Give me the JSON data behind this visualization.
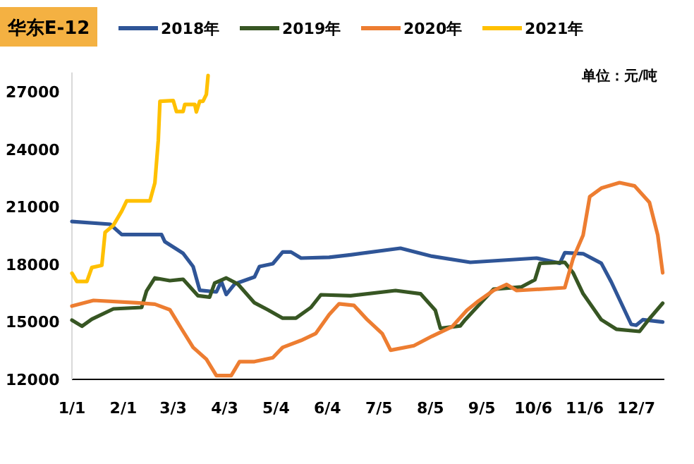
{
  "chart_data": {
    "type": "line",
    "title": "华东E-12",
    "annotations": [
      "单位：元/吨"
    ],
    "xlim": [
      "--01-01",
      "--12-24"
    ],
    "xticks": [
      {
        "value": "--01-01",
        "label": "1/1"
      },
      {
        "value": "--02-01",
        "label": "2/1"
      },
      {
        "value": "--03-03",
        "label": "3/3"
      },
      {
        "value": "--04-03",
        "label": "4/3"
      },
      {
        "value": "--05-04",
        "label": "5/4"
      },
      {
        "value": "--06-04",
        "label": "6/4"
      },
      {
        "value": "--07-05",
        "label": "7/5"
      },
      {
        "value": "--08-05",
        "label": "8/5"
      },
      {
        "value": "--09-05",
        "label": "9/5"
      },
      {
        "value": "--10-06",
        "label": "10/6"
      },
      {
        "value": "--11-06",
        "label": "11/6"
      },
      {
        "value": "--12-07",
        "label": "12/7"
      }
    ],
    "ylim": [
      12000,
      28000
    ],
    "yticks": [
      12000,
      15000,
      18000,
      21000,
      24000,
      27000
    ],
    "grid": false,
    "legend": "top",
    "marker": "none",
    "line_style": "solid",
    "series": [
      {
        "name": "2018年",
        "color": "#2f5597",
        "x": [
          "--01-01",
          "--01-24",
          "--01-31",
          "--02-24",
          "--02-26",
          "--03-09",
          "--03-15",
          "--03-19",
          "--03-29",
          "--04-01",
          "--04-04",
          "--04-09",
          "--04-21",
          "--04-24",
          "--05-02",
          "--05-08",
          "--05-13",
          "--05-19",
          "--06-05",
          "--06-18",
          "--07-18",
          "--08-06",
          "--08-29",
          "--10-08",
          "--10-22",
          "--10-25",
          "--11-05",
          "--11-16",
          "--11-22",
          "--12-04",
          "--12-07",
          "--12-11",
          "--12-23"
        ],
        "values": [
          20230,
          20090,
          19550,
          19550,
          19180,
          18570,
          17880,
          16650,
          16560,
          17100,
          16430,
          16970,
          17340,
          17880,
          18030,
          18640,
          18640,
          18320,
          18370,
          18490,
          18840,
          18420,
          18100,
          18320,
          18050,
          18600,
          18550,
          18050,
          17070,
          14870,
          14820,
          15110,
          14990
        ]
      },
      {
        "name": "2019年",
        "color": "#375623",
        "x": [
          "--01-01",
          "--01-07",
          "--01-13",
          "--01-26",
          "--02-12",
          "--02-15",
          "--02-20",
          "--03-01",
          "--03-09",
          "--03-18",
          "--03-25",
          "--03-28",
          "--04-04",
          "--04-11",
          "--04-21",
          "--04-29",
          "--05-08",
          "--05-16",
          "--05-25",
          "--05-31",
          "--06-18",
          "--07-15",
          "--07-30",
          "--08-08",
          "--08-11",
          "--08-23",
          "--08-26",
          "--09-12",
          "--09-29",
          "--10-07",
          "--10-10",
          "--10-25",
          "--10-30",
          "--11-05",
          "--11-16",
          "--11-25",
          "--12-09",
          "--12-15",
          "--12-23"
        ],
        "values": [
          15090,
          14770,
          15140,
          15680,
          15750,
          16610,
          17290,
          17150,
          17220,
          16360,
          16290,
          17020,
          17290,
          16970,
          15990,
          15630,
          15190,
          15190,
          15750,
          16410,
          16360,
          16630,
          16460,
          15600,
          14660,
          14790,
          15110,
          16700,
          16820,
          17190,
          18050,
          18100,
          17560,
          16460,
          15110,
          14620,
          14500,
          15160,
          15970
        ]
      },
      {
        "name": "2020年",
        "color": "#ed7d31",
        "x": [
          "--01-01",
          "--01-14",
          "--02-09",
          "--02-20",
          "--03-01",
          "--03-08",
          "--03-15",
          "--03-23",
          "--03-29",
          "--04-07",
          "--04-12",
          "--04-21",
          "--05-02",
          "--05-08",
          "--05-19",
          "--05-28",
          "--06-05",
          "--06-11",
          "--06-20",
          "--06-28",
          "--07-07",
          "--07-12",
          "--07-26",
          "--08-06",
          "--08-18",
          "--08-27",
          "--09-03",
          "--09-12",
          "--09-20",
          "--09-26",
          "--10-25",
          "--10-30",
          "--11-05",
          "--11-09",
          "--11-16",
          "--11-27",
          "--12-06",
          "--12-15",
          "--12-20",
          "--12-23"
        ],
        "values": [
          15820,
          16120,
          15990,
          15920,
          15630,
          14650,
          13670,
          13050,
          12200,
          12200,
          12930,
          12930,
          13130,
          13670,
          14030,
          14400,
          15380,
          15940,
          15850,
          15110,
          14380,
          13520,
          13760,
          14250,
          14740,
          15600,
          16090,
          16630,
          16950,
          16630,
          16780,
          18300,
          19520,
          21530,
          21970,
          22260,
          22090,
          21230,
          19520,
          17560
        ]
      },
      {
        "name": "2021年",
        "color": "#ffc000",
        "x": [
          "--01-01",
          "--01-04",
          "--01-10",
          "--01-13",
          "--01-19",
          "--01-21",
          "--01-26",
          "--01-31",
          "--02-03",
          "--02-17",
          "--02-20",
          "--02-22",
          "--02-23",
          "--03-03",
          "--03-05",
          "--03-09",
          "--03-10",
          "--03-16",
          "--03-17",
          "--03-19",
          "--03-21",
          "--03-23",
          "--03-24"
        ],
        "values": [
          17540,
          17100,
          17100,
          17830,
          17950,
          19670,
          20040,
          20770,
          21310,
          21310,
          22240,
          24450,
          26500,
          26540,
          25960,
          25960,
          26330,
          26330,
          25940,
          26500,
          26500,
          26860,
          27840
        ]
      }
    ]
  }
}
